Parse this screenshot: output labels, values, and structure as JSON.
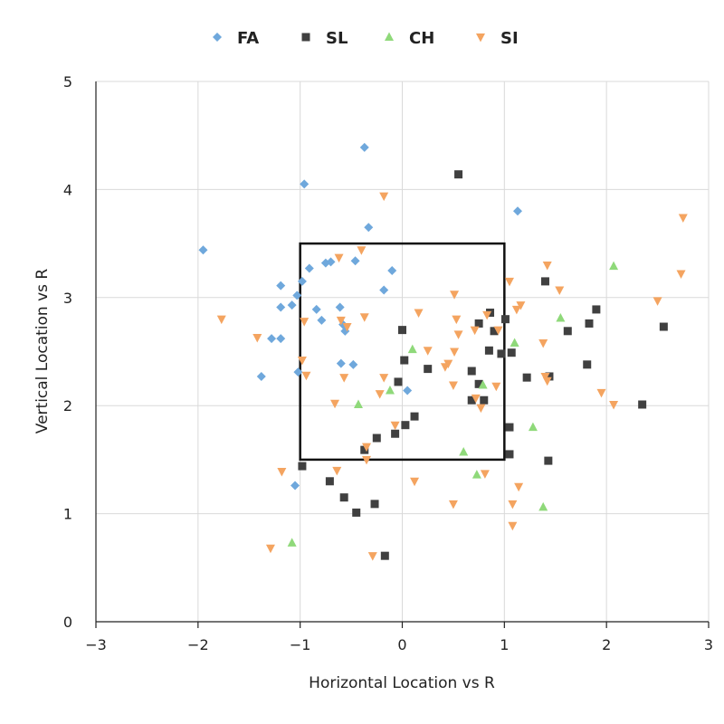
{
  "chart_data": {
    "type": "scatter",
    "title": "",
    "xlabel": "Horizontal Location vs R",
    "ylabel": "Vertical Location vs R",
    "xlim": [
      -3,
      3
    ],
    "ylim": [
      0,
      5
    ],
    "xticks": [
      -3,
      -2,
      -1,
      0,
      1,
      2,
      3
    ],
    "yticks": [
      0,
      1,
      2,
      3,
      4,
      5
    ],
    "xtick_labels": [
      "−3",
      "−2",
      "−1",
      "0",
      "1",
      "2",
      "3"
    ],
    "ytick_labels": [
      "0",
      "1",
      "2",
      "3",
      "4",
      "5"
    ],
    "grid": true,
    "legend_position": "top",
    "strike_zone": {
      "x": [
        -1,
        1
      ],
      "y": [
        1.5,
        3.5
      ]
    },
    "series": [
      {
        "name": "FA",
        "marker": "diamond",
        "color": "#6fa8dc",
        "points": [
          [
            -1.95,
            3.44
          ],
          [
            -1.38,
            2.27
          ],
          [
            -1.28,
            2.62
          ],
          [
            -1.19,
            2.62
          ],
          [
            -1.19,
            3.11
          ],
          [
            -1.19,
            2.91
          ],
          [
            -1.08,
            2.93
          ],
          [
            -1.03,
            3.02
          ],
          [
            -1.05,
            1.26
          ],
          [
            -1.02,
            2.31
          ],
          [
            -0.98,
            3.15
          ],
          [
            -0.96,
            4.05
          ],
          [
            -0.91,
            3.27
          ],
          [
            -0.84,
            2.89
          ],
          [
            -0.79,
            2.79
          ],
          [
            -0.75,
            3.32
          ],
          [
            -0.7,
            3.33
          ],
          [
            -0.61,
            2.91
          ],
          [
            -0.6,
            2.39
          ],
          [
            -0.58,
            2.75
          ],
          [
            -0.56,
            2.69
          ],
          [
            -0.48,
            2.38
          ],
          [
            -0.46,
            3.34
          ],
          [
            -0.37,
            4.39
          ],
          [
            -0.33,
            3.65
          ],
          [
            -0.18,
            3.07
          ],
          [
            -0.1,
            3.25
          ],
          [
            0.05,
            2.14
          ],
          [
            1.13,
            3.8
          ]
        ]
      },
      {
        "name": "SL",
        "marker": "square",
        "color": "#404040",
        "points": [
          [
            -0.98,
            1.44
          ],
          [
            -0.71,
            1.3
          ],
          [
            -0.57,
            1.15
          ],
          [
            -0.45,
            1.01
          ],
          [
            -0.37,
            1.59
          ],
          [
            -0.27,
            1.09
          ],
          [
            -0.25,
            1.7
          ],
          [
            -0.17,
            0.61
          ],
          [
            -0.07,
            1.74
          ],
          [
            -0.04,
            2.22
          ],
          [
            0.0,
            2.7
          ],
          [
            0.02,
            2.42
          ],
          [
            0.03,
            1.82
          ],
          [
            0.12,
            1.9
          ],
          [
            0.25,
            2.34
          ],
          [
            0.55,
            4.14
          ],
          [
            0.68,
            2.05
          ],
          [
            0.68,
            2.32
          ],
          [
            0.75,
            2.76
          ],
          [
            0.75,
            2.2
          ],
          [
            0.8,
            2.05
          ],
          [
            0.85,
            2.51
          ],
          [
            0.86,
            2.86
          ],
          [
            0.9,
            2.69
          ],
          [
            0.97,
            2.48
          ],
          [
            1.01,
            2.8
          ],
          [
            1.05,
            1.8
          ],
          [
            1.05,
            1.55
          ],
          [
            1.07,
            2.49
          ],
          [
            1.22,
            2.26
          ],
          [
            1.4,
            3.15
          ],
          [
            1.43,
            1.49
          ],
          [
            1.44,
            2.27
          ],
          [
            1.62,
            2.69
          ],
          [
            1.81,
            2.38
          ],
          [
            1.83,
            2.76
          ],
          [
            1.9,
            2.89
          ],
          [
            2.35,
            2.01
          ],
          [
            2.56,
            2.73
          ]
        ]
      },
      {
        "name": "CH",
        "marker": "triangle-up",
        "color": "#8fd97a",
        "points": [
          [
            -1.08,
            0.73
          ],
          [
            -0.43,
            2.01
          ],
          [
            -0.12,
            2.14
          ],
          [
            0.1,
            2.52
          ],
          [
            0.6,
            1.57
          ],
          [
            0.73,
            1.36
          ],
          [
            0.79,
            2.19
          ],
          [
            1.1,
            2.58
          ],
          [
            1.28,
            1.8
          ],
          [
            1.38,
            1.06
          ],
          [
            1.55,
            2.81
          ],
          [
            2.07,
            3.29
          ]
        ]
      },
      {
        "name": "SI",
        "marker": "triangle-down",
        "color": "#f4a460",
        "points": [
          [
            -1.77,
            2.8
          ],
          [
            -1.42,
            2.63
          ],
          [
            -1.29,
            0.68
          ],
          [
            -1.18,
            1.39
          ],
          [
            -0.98,
            2.42
          ],
          [
            -0.96,
            2.78
          ],
          [
            -0.94,
            2.28
          ],
          [
            -0.66,
            2.02
          ],
          [
            -0.64,
            1.4
          ],
          [
            -0.62,
            3.37
          ],
          [
            -0.6,
            2.79
          ],
          [
            -0.57,
            2.26
          ],
          [
            -0.54,
            2.73
          ],
          [
            -0.4,
            3.44
          ],
          [
            -0.37,
            2.82
          ],
          [
            -0.35,
            1.62
          ],
          [
            -0.35,
            1.5
          ],
          [
            -0.29,
            0.61
          ],
          [
            -0.22,
            2.11
          ],
          [
            -0.18,
            2.26
          ],
          [
            -0.18,
            3.94
          ],
          [
            -0.07,
            1.82
          ],
          [
            0.12,
            1.3
          ],
          [
            0.16,
            2.86
          ],
          [
            0.25,
            2.51
          ],
          [
            0.42,
            2.36
          ],
          [
            0.45,
            2.39
          ],
          [
            0.5,
            1.09
          ],
          [
            0.5,
            2.19
          ],
          [
            0.51,
            2.5
          ],
          [
            0.51,
            3.03
          ],
          [
            0.53,
            2.8
          ],
          [
            0.55,
            2.66
          ],
          [
            0.71,
            2.7
          ],
          [
            0.72,
            2.07
          ],
          [
            0.77,
            1.98
          ],
          [
            0.81,
            1.37
          ],
          [
            0.83,
            2.84
          ],
          [
            0.92,
            2.18
          ],
          [
            0.94,
            2.7
          ],
          [
            1.05,
            3.15
          ],
          [
            1.08,
            1.09
          ],
          [
            1.08,
            0.89
          ],
          [
            1.12,
            2.89
          ],
          [
            1.14,
            1.25
          ],
          [
            1.16,
            2.93
          ],
          [
            1.38,
            2.58
          ],
          [
            1.4,
            2.27
          ],
          [
            1.42,
            2.23
          ],
          [
            1.42,
            3.3
          ],
          [
            1.54,
            3.07
          ],
          [
            1.95,
            2.12
          ],
          [
            2.07,
            2.01
          ],
          [
            2.5,
            2.97
          ],
          [
            2.73,
            3.22
          ],
          [
            2.75,
            3.74
          ]
        ]
      }
    ]
  }
}
